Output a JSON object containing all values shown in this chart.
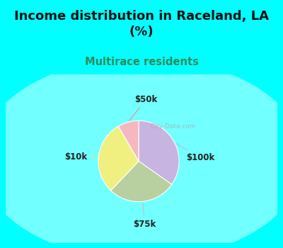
{
  "title": "Income distribution in Raceland, LA\n(%)",
  "subtitle": "Multirace residents",
  "title_color": "#111111",
  "subtitle_color": "#2e8b57",
  "background_color": "#00ffff",
  "watermark": "City-Data.com",
  "slices": [
    {
      "label": "$100k",
      "value": 33,
      "color": "#c8b4e0"
    },
    {
      "label": "$75k",
      "value": 26,
      "color": "#b8cfa0"
    },
    {
      "label": "$10k",
      "value": 28,
      "color": "#f0f080"
    },
    {
      "label": "$50k",
      "value": 8,
      "color": "#f5b8c0"
    }
  ],
  "start_angle": 90,
  "label_fontsize": 8.5,
  "title_fontsize": 13,
  "subtitle_fontsize": 10.5,
  "line_colors": {
    "$100k": "#c8b4e0",
    "$75k": "#c0c0c0",
    "$10k": "#e8e840",
    "$50k": "#e89090"
  }
}
